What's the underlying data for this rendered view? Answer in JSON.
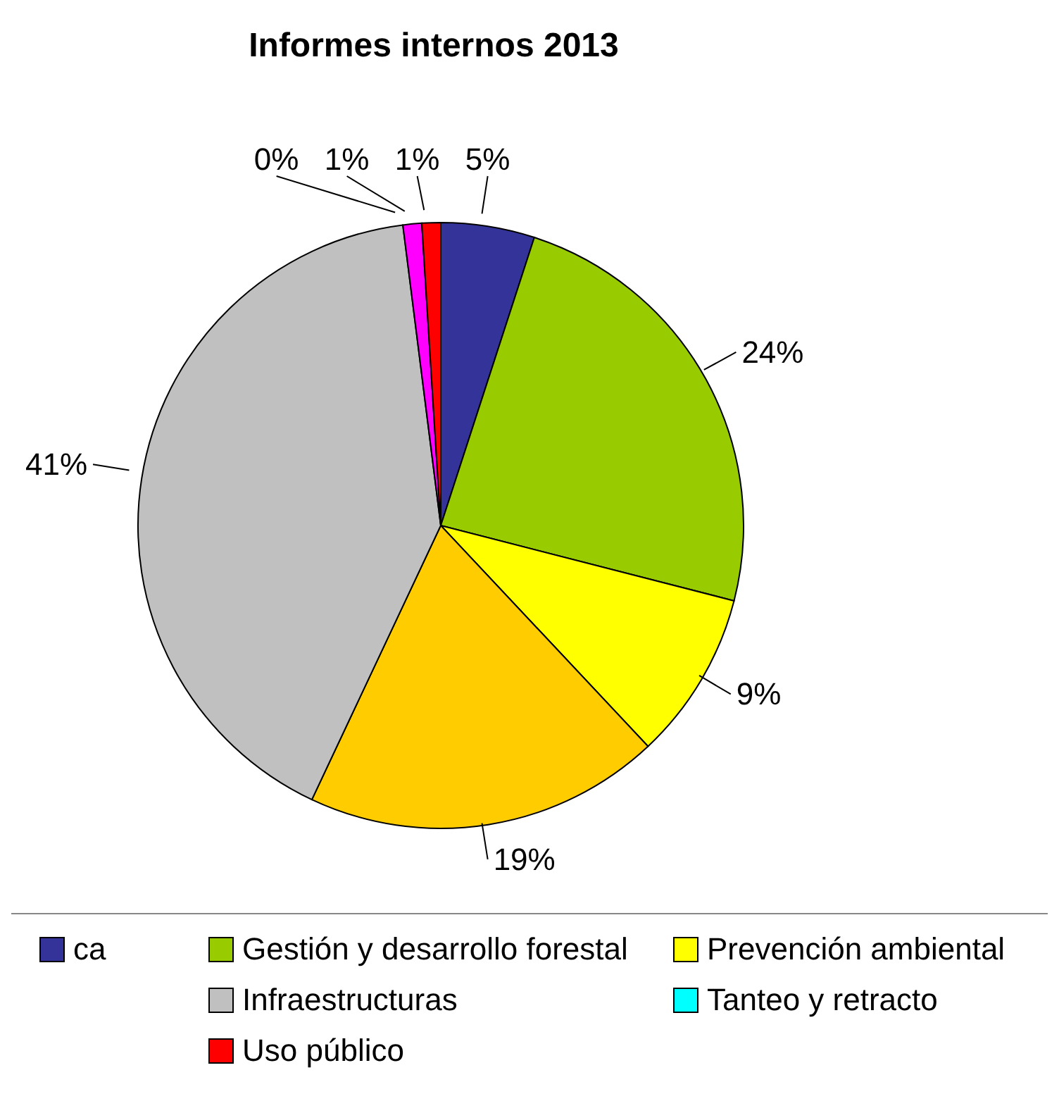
{
  "chart_data": {
    "type": "pie",
    "title": "Informes internos 2013",
    "categories": [
      "ca",
      "Gestión y desarrollo forestal",
      "Prevención ambiental",
      null,
      "Infraestructuras",
      "Tanteo y retracto",
      null,
      "Uso público"
    ],
    "values": [
      5,
      24,
      9,
      19,
      41,
      0,
      1,
      1
    ],
    "value_labels": [
      "5%",
      "24%",
      "9%",
      "19%",
      "41%",
      "0%",
      "1%",
      "1%"
    ],
    "colors": [
      "#333399",
      "#99cc00",
      "#ffff00",
      "#ffcc00",
      "#c0c0c0",
      "#00ffff",
      "#ff00ff",
      "#ff0000"
    ],
    "legend": "bottom"
  }
}
